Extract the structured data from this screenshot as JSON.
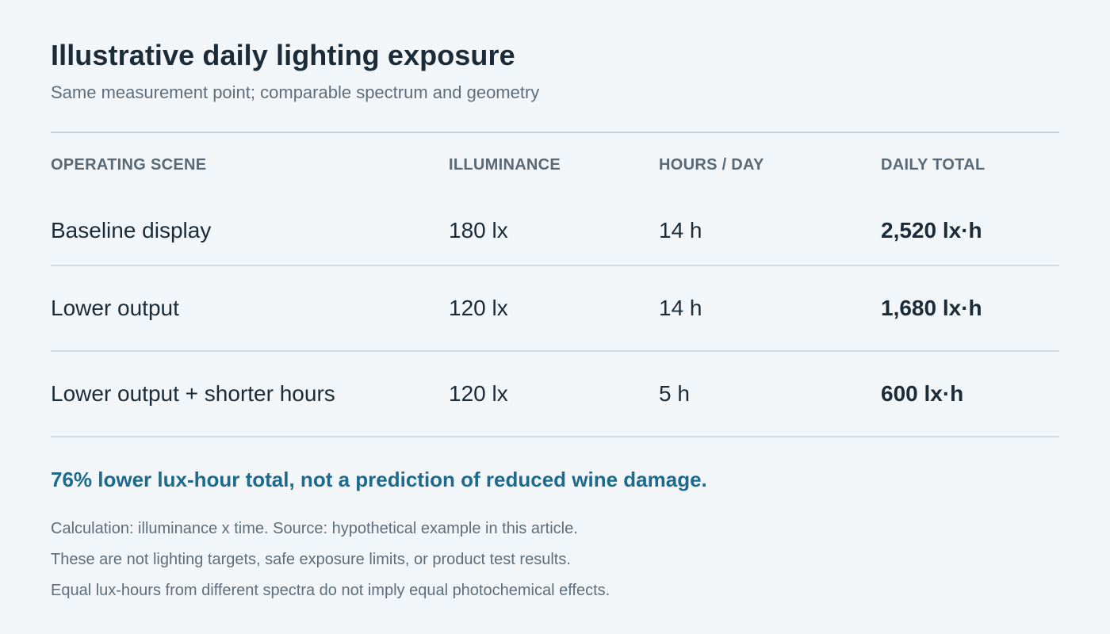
{
  "title": "Illustrative daily lighting exposure",
  "subtitle": "Same measurement point; comparable spectrum and geometry",
  "table": {
    "headers": {
      "scene": "OPERATING SCENE",
      "illuminance": "ILLUMINANCE",
      "hours": "HOURS / DAY",
      "total": "DAILY TOTAL"
    },
    "rows": [
      {
        "scene": "Baseline display",
        "illuminance": "180 lx",
        "hours": "14 h",
        "total": "2,520 lx·h"
      },
      {
        "scene": "Lower output",
        "illuminance": "120 lx",
        "hours": "14 h",
        "total": "1,680 lx·h"
      },
      {
        "scene": "Lower output + shorter hours",
        "illuminance": "120 lx",
        "hours": "5 h",
        "total": "600 lx·h"
      }
    ]
  },
  "highlight": "76% lower lux-hour total, not a prediction of reduced wine damage.",
  "notes": [
    "Calculation: illuminance x time. Source: hypothetical example in this article.",
    "These are not lighting targets, safe exposure limits, or product test results.",
    "Equal lux-hours from different spectra do not imply equal photochemical effects."
  ],
  "colors": {
    "background": "#f2f6f9",
    "text": "#1c2b38",
    "muted": "#5f6e7a",
    "accent": "#1d6a8d",
    "rule": "#c7d0d7"
  }
}
